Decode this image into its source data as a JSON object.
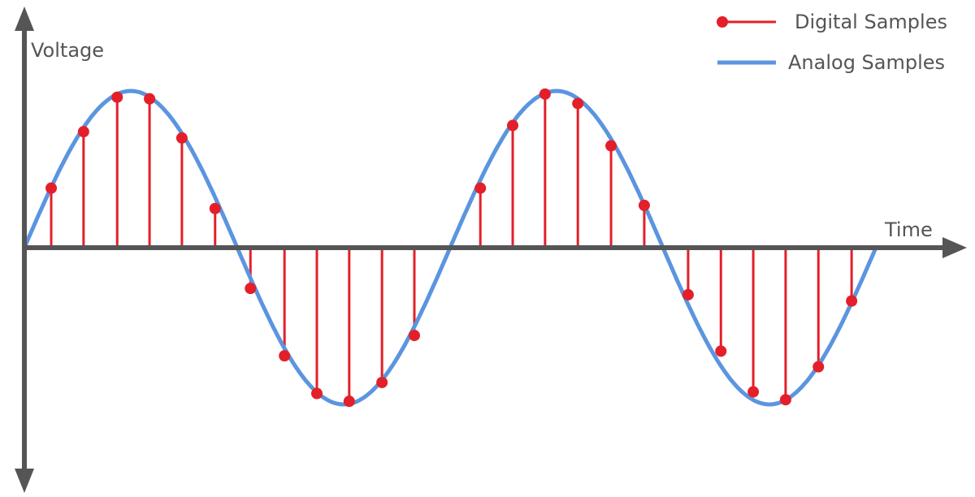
{
  "chart_data": {
    "type": "line",
    "title": "",
    "xlabel": "Time",
    "ylabel": "Voltage",
    "grid": false,
    "legend_placement": "top-right",
    "xlim": [
      0,
      2.2
    ],
    "ylim": [
      -1.55,
      1.5
    ],
    "series": [
      {
        "name": "Analog Samples",
        "kind": "sine",
        "amplitude": 1,
        "periods": 2,
        "color": "#5b95e0"
      },
      {
        "name": "Digital Samples",
        "kind": "stem",
        "color": "#e3202a",
        "x": [
          0.063,
          0.139,
          0.218,
          0.294,
          0.37,
          0.448,
          0.531,
          0.611,
          0.687,
          0.763,
          0.84,
          0.916,
          1.071,
          1.147,
          1.223,
          1.3,
          1.378,
          1.456,
          1.559,
          1.636,
          1.712,
          1.788,
          1.865,
          1.943
        ],
        "y": [
          0.38,
          0.74,
          0.96,
          0.95,
          0.7,
          0.25,
          -0.26,
          -0.69,
          -0.93,
          -0.98,
          -0.86,
          -0.56,
          0.38,
          0.78,
          0.98,
          0.92,
          0.65,
          0.27,
          -0.3,
          -0.66,
          -0.92,
          -0.97,
          -0.76,
          -0.34
        ]
      }
    ],
    "legend": [
      {
        "label": "Digital Samples",
        "color": "#e3202a"
      },
      {
        "label": "Analog Samples",
        "color": "#5b95e0"
      }
    ],
    "axis_color": "#555555"
  }
}
